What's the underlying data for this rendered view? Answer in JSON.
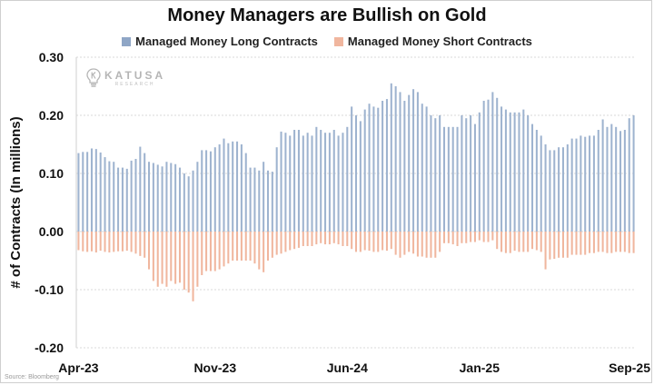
{
  "chart_data": {
    "type": "bar",
    "title": "Money Managers are Bullish on Gold",
    "ylabel": "# of Contracts (In millions)",
    "xlabel": "",
    "ylim": [
      -0.2,
      0.3
    ],
    "yticks": [
      "0.30",
      "0.20",
      "0.10",
      "0.00",
      "-0.10",
      "-0.20"
    ],
    "ytick_values": [
      0.3,
      0.2,
      0.1,
      0.0,
      -0.1,
      -0.2
    ],
    "xtick_labels": [
      "Apr-23",
      "Nov-23",
      "Jun-24",
      "Jan-25",
      "Sep-25"
    ],
    "xtick_index": [
      0,
      31,
      61,
      91,
      124
    ],
    "grid": true,
    "legend_position": "top",
    "series": [
      {
        "name": "Managed Money Long Contracts",
        "color": "#9eb3cf",
        "values": [
          0.135,
          0.137,
          0.137,
          0.143,
          0.142,
          0.136,
          0.128,
          0.121,
          0.12,
          0.11,
          0.11,
          0.108,
          0.122,
          0.125,
          0.146,
          0.135,
          0.12,
          0.118,
          0.115,
          0.112,
          0.12,
          0.118,
          0.116,
          0.11,
          0.1,
          0.095,
          0.105,
          0.12,
          0.14,
          0.14,
          0.138,
          0.145,
          0.15,
          0.16,
          0.152,
          0.155,
          0.155,
          0.15,
          0.135,
          0.11,
          0.11,
          0.105,
          0.12,
          0.105,
          0.103,
          0.145,
          0.172,
          0.17,
          0.165,
          0.175,
          0.175,
          0.165,
          0.17,
          0.165,
          0.18,
          0.175,
          0.17,
          0.17,
          0.175,
          0.165,
          0.17,
          0.18,
          0.215,
          0.2,
          0.19,
          0.21,
          0.22,
          0.215,
          0.213,
          0.225,
          0.228,
          0.255,
          0.25,
          0.24,
          0.225,
          0.235,
          0.245,
          0.24,
          0.22,
          0.215,
          0.2,
          0.195,
          0.2,
          0.18,
          0.18,
          0.18,
          0.18,
          0.2,
          0.195,
          0.2,
          0.185,
          0.205,
          0.225,
          0.227,
          0.24,
          0.23,
          0.215,
          0.21,
          0.205,
          0.205,
          0.205,
          0.21,
          0.2,
          0.185,
          0.175,
          0.165,
          0.15,
          0.14,
          0.14,
          0.145,
          0.145,
          0.15,
          0.16,
          0.16,
          0.165,
          0.163,
          0.165,
          0.165,
          0.175,
          0.193,
          0.18,
          0.185,
          0.18,
          0.173,
          0.175,
          0.195,
          0.2
        ],
        "values_note": ""
      },
      {
        "name": "Managed Money Short Contracts",
        "color": "#f0b69e",
        "values": [
          -0.032,
          -0.034,
          -0.035,
          -0.034,
          -0.036,
          -0.033,
          -0.035,
          -0.036,
          -0.035,
          -0.034,
          -0.034,
          -0.033,
          -0.035,
          -0.038,
          -0.042,
          -0.045,
          -0.065,
          -0.085,
          -0.095,
          -0.09,
          -0.095,
          -0.085,
          -0.09,
          -0.088,
          -0.1,
          -0.105,
          -0.12,
          -0.095,
          -0.075,
          -0.068,
          -0.068,
          -0.068,
          -0.065,
          -0.06,
          -0.055,
          -0.05,
          -0.05,
          -0.05,
          -0.05,
          -0.05,
          -0.055,
          -0.065,
          -0.07,
          -0.05,
          -0.045,
          -0.04,
          -0.038,
          -0.035,
          -0.032,
          -0.03,
          -0.028,
          -0.025,
          -0.025,
          -0.025,
          -0.022,
          -0.02,
          -0.022,
          -0.022,
          -0.02,
          -0.022,
          -0.025,
          -0.025,
          -0.03,
          -0.035,
          -0.035,
          -0.032,
          -0.033,
          -0.035,
          -0.035,
          -0.032,
          -0.033,
          -0.03,
          -0.04,
          -0.045,
          -0.04,
          -0.035,
          -0.038,
          -0.043,
          -0.043,
          -0.045,
          -0.045,
          -0.045,
          -0.035,
          -0.02,
          -0.02,
          -0.022,
          -0.025,
          -0.02,
          -0.02,
          -0.018,
          -0.018,
          -0.015,
          -0.018,
          -0.018,
          -0.015,
          -0.03,
          -0.035,
          -0.037,
          -0.037,
          -0.033,
          -0.035,
          -0.035,
          -0.035,
          -0.03,
          -0.032,
          -0.035,
          -0.065,
          -0.048,
          -0.047,
          -0.045,
          -0.045,
          -0.045,
          -0.04,
          -0.04,
          -0.04,
          -0.04,
          -0.037,
          -0.037,
          -0.035,
          -0.035,
          -0.037,
          -0.037,
          -0.035,
          -0.035,
          -0.035,
          -0.037,
          -0.037
        ]
      }
    ]
  },
  "logo": {
    "name": "KATUSA",
    "sub": "RESEARCH",
    "icon": "lightbulb-k-icon"
  },
  "source": "Source: Bloomberg"
}
